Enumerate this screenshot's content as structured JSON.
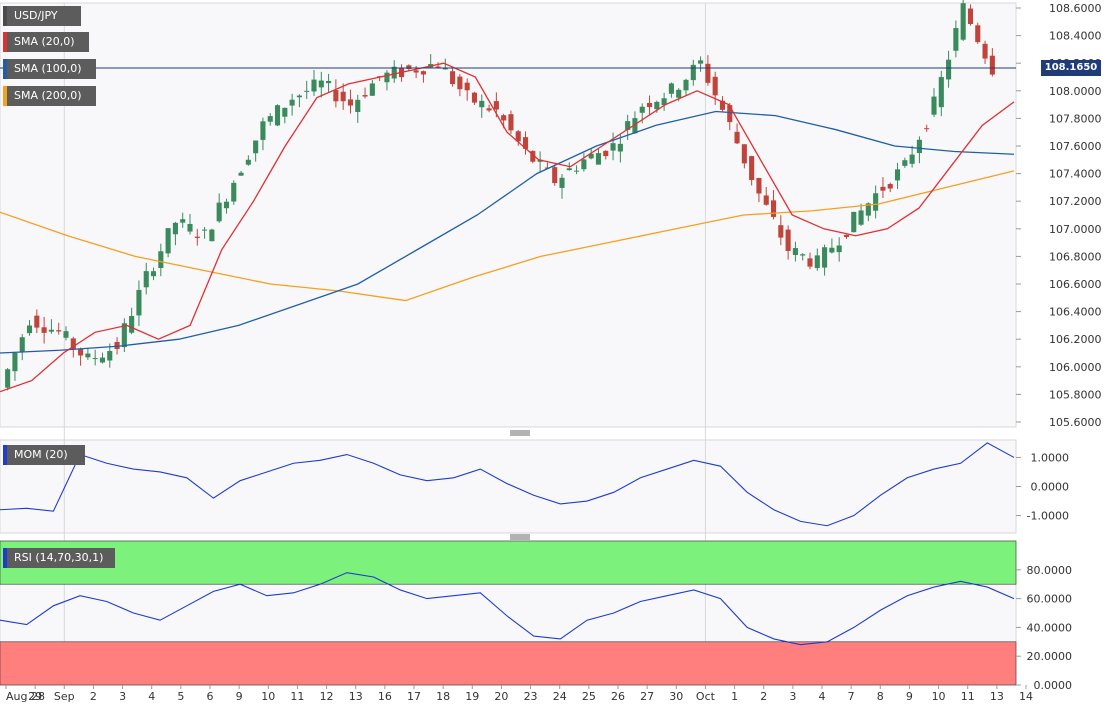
{
  "chart_data": [
    {
      "type": "candlestick",
      "symbol": "USD/JPY",
      "legend": [
        {
          "label": "USD/JPY",
          "color": "#4b4b4b"
        },
        {
          "label": "SMA (20,0)",
          "color": "#e03030"
        },
        {
          "label": "SMA (100,0)",
          "color": "#1f5fa8"
        },
        {
          "label": "SMA (200,0)",
          "color": "#f5a020"
        }
      ],
      "last_price": "108.1650",
      "ylim": [
        105.6,
        108.6
      ],
      "yticks": [
        "108.6000",
        "108.4000",
        "108.2000",
        "108.0000",
        "107.8000",
        "107.6000",
        "107.4000",
        "107.2000",
        "107.0000",
        "106.8000",
        "106.6000",
        "106.4000",
        "106.2000",
        "106.0000",
        "105.8000",
        "105.6000"
      ],
      "xticks": [
        "Aug 28",
        "29",
        "Sep",
        "2",
        "3",
        "4",
        "5",
        "6",
        "9",
        "10",
        "11",
        "12",
        "13",
        "16",
        "17",
        "18",
        "19",
        "20",
        "23",
        "24",
        "25",
        "26",
        "27",
        "30",
        "Oct",
        "1",
        "2",
        "3",
        "4",
        "7",
        "8",
        "9",
        "10",
        "11",
        "13",
        "14"
      ],
      "daily_close": [
        105.85,
        106.35,
        106.25,
        106.05,
        106.15,
        106.65,
        107.05,
        106.95,
        107.35,
        107.75,
        107.95,
        108.05,
        107.9,
        108.1,
        108.15,
        108.2,
        107.95,
        107.85,
        107.55,
        107.35,
        107.5,
        107.6,
        107.9,
        108.0,
        108.2,
        107.75,
        107.25,
        106.85,
        106.75,
        107.0,
        107.25,
        107.45,
        107.9,
        108.6,
        108.165
      ],
      "sma20": [
        105.82,
        105.9,
        106.1,
        106.25,
        106.3,
        106.2,
        106.3,
        106.85,
        107.2,
        107.6,
        107.95,
        108.05,
        108.1,
        108.15,
        108.2,
        108.1,
        107.7,
        107.5,
        107.45,
        107.6,
        107.75,
        107.9,
        108.0,
        107.9,
        107.5,
        107.1,
        107.0,
        106.95,
        107.0,
        107.15,
        107.45,
        107.75,
        107.92
      ],
      "sma100": [
        106.1,
        106.12,
        106.15,
        106.2,
        106.3,
        106.45,
        106.6,
        106.85,
        107.1,
        107.4,
        107.6,
        107.75,
        107.85,
        107.82,
        107.72,
        107.6,
        107.56,
        107.54
      ],
      "sma200": [
        107.12,
        106.95,
        106.8,
        106.7,
        106.6,
        106.55,
        106.48,
        106.65,
        106.8,
        106.9,
        107.0,
        107.1,
        107.13,
        107.18,
        107.3,
        107.42
      ],
      "mom_title": "MOM (20)",
      "mom_yticks": [
        "1.0000",
        "0.0000",
        "-1.0000"
      ],
      "mom_values": [
        -0.8,
        -0.75,
        -0.85,
        1.1,
        0.8,
        0.6,
        0.5,
        0.3,
        -0.4,
        0.2,
        0.5,
        0.8,
        0.9,
        1.1,
        0.8,
        0.4,
        0.2,
        0.3,
        0.6,
        0.1,
        -0.3,
        -0.6,
        -0.5,
        -0.2,
        0.3,
        0.6,
        0.9,
        0.7,
        -0.2,
        -0.8,
        -1.2,
        -1.35,
        -1.0,
        -0.3,
        0.3,
        0.6,
        0.8,
        1.5,
        1.0
      ],
      "rsi_title": "RSI (14,70,30,1)",
      "rsi_yticks": [
        "80.0000",
        "60.0000",
        "40.0000",
        "20.0000",
        "0.0000"
      ],
      "rsi_bands": {
        "upper": 70,
        "lower": 30
      },
      "rsi_values": [
        45,
        42,
        55,
        62,
        58,
        50,
        45,
        55,
        65,
        70,
        62,
        64,
        70,
        78,
        75,
        66,
        60,
        62,
        64,
        48,
        34,
        32,
        45,
        50,
        58,
        62,
        66,
        60,
        40,
        32,
        28,
        30,
        40,
        52,
        62,
        68,
        72,
        68,
        60
      ]
    }
  ]
}
